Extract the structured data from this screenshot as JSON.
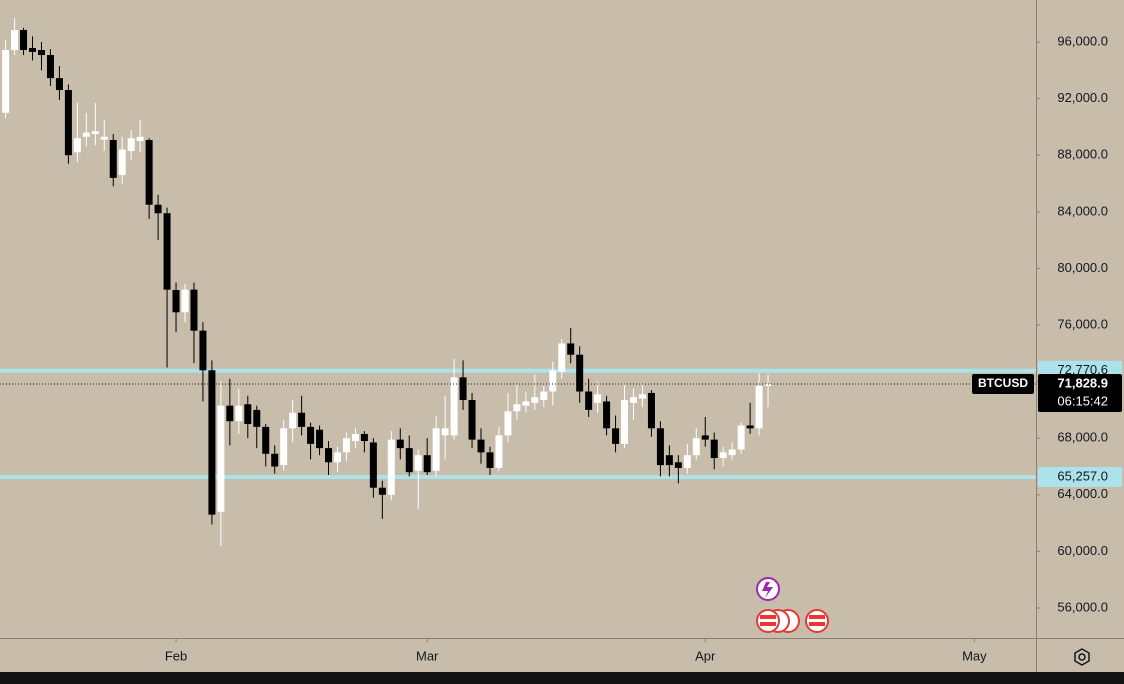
{
  "chart_data": {
    "type": "candlestick",
    "symbol": "BTCUSD",
    "countdown": "06:15:42",
    "up_color": "#ffffff",
    "down_color": "#000000",
    "grid": false,
    "ylim": [
      53880,
      98970
    ],
    "yticks": [
      {
        "value": 56000,
        "label": "56,000.0"
      },
      {
        "value": 60000,
        "label": "60,000.0"
      },
      {
        "value": 64000,
        "label": "64,000.0"
      },
      {
        "value": 68000,
        "label": "68,000.0"
      },
      {
        "value": 72000,
        "label": "72,000.0"
      },
      {
        "value": 76000,
        "label": "76,000.0"
      },
      {
        "value": 80000,
        "label": "80,000.0"
      },
      {
        "value": 84000,
        "label": "84,000.0"
      },
      {
        "value": 88000,
        "label": "88,000.0"
      },
      {
        "value": 92000,
        "label": "92,000.0"
      },
      {
        "value": 96000,
        "label": "96,000.0"
      }
    ],
    "hlines": [
      {
        "value": 72770.6,
        "label": "72,770.6",
        "color": "#ace3ea"
      },
      {
        "value": 65257.0,
        "label": "65,257.0",
        "color": "#ace3ea"
      }
    ],
    "last_price": {
      "value": 71828.9,
      "label": "71,828.9"
    },
    "categories": [
      null,
      null,
      null,
      null,
      null,
      null,
      null,
      null,
      null,
      null,
      null,
      null,
      null,
      null,
      null,
      null,
      null,
      null,
      null,
      "Feb",
      null,
      null,
      null,
      null,
      null,
      null,
      null,
      null,
      null,
      null,
      null,
      null,
      null,
      null,
      null,
      null,
      null,
      null,
      null,
      null,
      null,
      null,
      null,
      null,
      null,
      null,
      null,
      "Mar",
      null,
      null,
      null,
      null,
      null,
      null,
      null,
      null,
      null,
      null,
      null,
      null,
      null,
      null,
      null,
      null,
      null,
      null,
      null,
      null,
      null,
      null,
      null,
      null,
      null,
      null,
      null,
      null,
      null,
      null,
      "Apr",
      null,
      null,
      null,
      null,
      null,
      null,
      null,
      null,
      null,
      null,
      null,
      null,
      null,
      null,
      null,
      null,
      null,
      null,
      null,
      null,
      null,
      null,
      null,
      null,
      null,
      null,
      null,
      null,
      null,
      "May",
      null,
      null,
      null,
      null,
      null,
      null
    ],
    "open": [
      91000,
      95435,
      96850,
      95580,
      95435,
      95080,
      93450,
      92608,
      88200,
      89300,
      89500,
      89100,
      89074,
      86600,
      88300,
      89000,
      89074,
      84500,
      83900,
      78474,
      76900,
      78500,
      75600,
      72800,
      62800,
      70300,
      69200,
      70400,
      70000,
      68800,
      66900,
      66100,
      68700,
      69800,
      68800,
      68600,
      67300,
      66300,
      67000,
      67800,
      68300,
      67700,
      64500,
      64000,
      67900,
      67300,
      65700,
      66800,
      65700,
      68200,
      68200,
      72300,
      70700,
      67900,
      67000,
      65900,
      68200,
      69900,
      70300,
      70500,
      70700,
      71300,
      72700,
      74700,
      73900,
      71300,
      70500,
      70600,
      68700,
      67600,
      70500,
      70800,
      71200,
      68700,
      66800,
      66300,
      65900,
      66800,
      68200,
      67900,
      66600,
      66800,
      67200,
      68900,
      68700,
      71700,
      null,
      null,
      null,
      null,
      null,
      null,
      null,
      null,
      null,
      null,
      null,
      null,
      null,
      null,
      null,
      null,
      null,
      null,
      null,
      null,
      null,
      null,
      null,
      null,
      null,
      null,
      null,
      null,
      null
    ],
    "high": [
      96140,
      97700,
      97000,
      96400,
      96000,
      95500,
      94300,
      93000,
      91700,
      91000,
      91700,
      90500,
      89500,
      89300,
      89800,
      90500,
      89200,
      85200,
      84300,
      79000,
      78900,
      79000,
      76200,
      73500,
      72000,
      72200,
      71500,
      71000,
      70300,
      69000,
      67500,
      69300,
      70700,
      71000,
      69100,
      68900,
      67800,
      67400,
      68400,
      68700,
      68500,
      68000,
      65000,
      68500,
      68700,
      68200,
      67200,
      68000,
      69600,
      71000,
      73600,
      73500,
      71200,
      68700,
      67400,
      68800,
      71200,
      71800,
      71300,
      72500,
      71700,
      73400,
      75000,
      75800,
      74500,
      72200,
      72000,
      71000,
      69600,
      71800,
      71500,
      71800,
      71400,
      69200,
      67500,
      66800,
      67600,
      68700,
      69500,
      68400,
      67400,
      67700,
      69100,
      70500,
      72600,
      72500,
      null,
      null,
      null,
      null,
      null,
      null,
      null,
      null,
      null,
      null,
      null,
      null,
      null,
      null,
      null,
      null,
      null,
      null,
      null,
      null,
      null,
      null,
      null,
      null,
      null,
      null,
      null,
      null,
      null
    ],
    "low": [
      90630,
      95080,
      95080,
      94700,
      94000,
      92900,
      91900,
      87400,
      87500,
      88600,
      88700,
      88300,
      85800,
      86000,
      87700,
      88200,
      83500,
      82000,
      73000,
      75500,
      76200,
      73300,
      70600,
      61900,
      60400,
      67500,
      68300,
      68000,
      67300,
      66000,
      65500,
      65700,
      67700,
      68200,
      66500,
      66800,
      65400,
      65600,
      66400,
      67300,
      67000,
      63800,
      62300,
      63600,
      66500,
      65300,
      63000,
      65400,
      65300,
      66500,
      67900,
      70000,
      67300,
      66200,
      65400,
      65700,
      67700,
      69300,
      69800,
      70000,
      70200,
      70300,
      72200,
      73300,
      70500,
      69500,
      69800,
      68200,
      67000,
      67300,
      69300,
      70200,
      68100,
      65300,
      65300,
      64800,
      65500,
      66500,
      67400,
      65800,
      66000,
      66500,
      66900,
      68300,
      68200,
      70200,
      null,
      null,
      null,
      null,
      null,
      null,
      null,
      null,
      null,
      null,
      null,
      null,
      null,
      null,
      null,
      null,
      null,
      null,
      null,
      null,
      null,
      null,
      null,
      null,
      null,
      null,
      null,
      null,
      null
    ],
    "close": [
      95435,
      96850,
      95435,
      95300,
      95080,
      93450,
      92608,
      88000,
      89200,
      89600,
      89700,
      89300,
      86400,
      88400,
      89200,
      89300,
      84500,
      83900,
      78500,
      76900,
      78500,
      75600,
      72800,
      62600,
      70300,
      69200,
      70300,
      69000,
      68800,
      66900,
      66000,
      68700,
      69800,
      68800,
      67600,
      67300,
      66300,
      67000,
      68000,
      68300,
      67800,
      64500,
      64000,
      67900,
      67300,
      65600,
      66800,
      65600,
      68700,
      68700,
      72300,
      70700,
      67900,
      67000,
      65900,
      68200,
      69900,
      70400,
      70600,
      70900,
      71300,
      72800,
      74700,
      73900,
      71300,
      70000,
      71100,
      68700,
      67600,
      70700,
      70900,
      71100,
      68700,
      66100,
      66100,
      65900,
      66800,
      68000,
      67900,
      66600,
      67000,
      67200,
      68900,
      68700,
      71700,
      71828.9,
      null,
      null,
      null,
      null,
      null,
      null,
      null,
      null,
      null,
      null,
      null,
      null,
      null,
      null,
      null,
      null,
      null,
      null,
      null,
      null,
      null,
      null,
      null,
      null,
      null,
      null,
      null,
      null,
      null
    ]
  }
}
